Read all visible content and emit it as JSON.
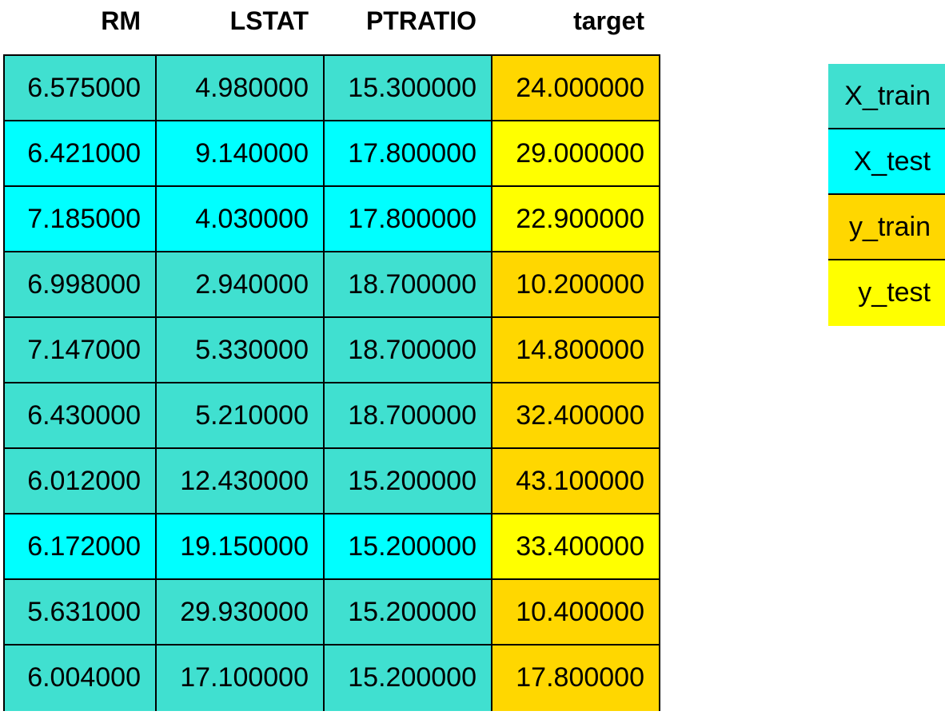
{
  "columns": [
    "RM",
    "LSTAT",
    "PTRATIO",
    "target"
  ],
  "colors": {
    "x_train": "#40E0D0",
    "x_test": "#00FFFF",
    "y_train": "#FFD700",
    "y_test": "#FFFF00"
  },
  "rows": [
    {
      "split": "train",
      "values": [
        "6.575000",
        "4.980000",
        "15.300000",
        "24.000000"
      ]
    },
    {
      "split": "test",
      "values": [
        "6.421000",
        "9.140000",
        "17.800000",
        "29.000000"
      ]
    },
    {
      "split": "test",
      "values": [
        "7.185000",
        "4.030000",
        "17.800000",
        "22.900000"
      ]
    },
    {
      "split": "train",
      "values": [
        "6.998000",
        "2.940000",
        "18.700000",
        "10.200000"
      ]
    },
    {
      "split": "train",
      "values": [
        "7.147000",
        "5.330000",
        "18.700000",
        "14.800000"
      ]
    },
    {
      "split": "train",
      "values": [
        "6.430000",
        "5.210000",
        "18.700000",
        "32.400000"
      ]
    },
    {
      "split": "train",
      "values": [
        "6.012000",
        "12.430000",
        "15.200000",
        "43.100000"
      ]
    },
    {
      "split": "test",
      "values": [
        "6.172000",
        "19.150000",
        "15.200000",
        "33.400000"
      ]
    },
    {
      "split": "train",
      "values": [
        "5.631000",
        "29.930000",
        "15.200000",
        "10.400000"
      ]
    },
    {
      "split": "train",
      "values": [
        "6.004000",
        "17.100000",
        "15.200000",
        "17.800000"
      ]
    }
  ],
  "legend": [
    {
      "label": "X_train",
      "color_key": "x_train"
    },
    {
      "label": "X_test",
      "color_key": "x_test"
    },
    {
      "label": "y_train",
      "color_key": "y_train"
    },
    {
      "label": "y_test",
      "color_key": "y_test"
    }
  ]
}
